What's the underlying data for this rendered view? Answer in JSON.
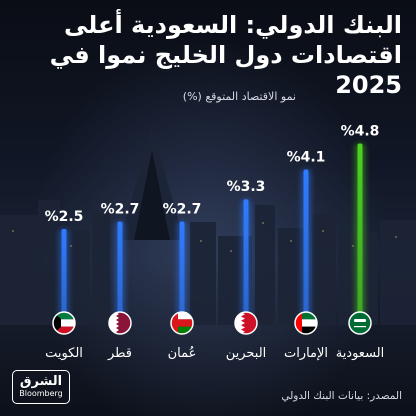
{
  "header": {
    "title": "البنك الدولي: السعودية أعلى اقتصادات دول الخليج نموا في 2025"
  },
  "chart_data": {
    "type": "bar",
    "title": "البنك الدولي: السعودية أعلى اقتصادات دول الخليج نموا في 2025",
    "ylabel": "نمو الاقتصاد المتوقع (%)",
    "categories": [
      "الكويت",
      "قطر",
      "عُمان",
      "البحرين",
      "الإمارات",
      "السعودية"
    ],
    "values": [
      2.5,
      2.7,
      2.7,
      3.3,
      4.1,
      4.8
    ],
    "value_labels": [
      "%2.5",
      "%2.7",
      "%2.7",
      "%3.3",
      "%4.1",
      "%4.8"
    ],
    "ylim": [
      0,
      5
    ],
    "grid": false,
    "colors": {
      "bar": "#2f7bff",
      "highlight": "#4cd31f"
    },
    "flag_icons": [
      "kuwait-flag-icon",
      "qatar-flag-icon",
      "oman-flag-icon",
      "bahrain-flag-icon",
      "uae-flag-icon",
      "saudi-flag-icon"
    ]
  },
  "footer": {
    "source": "المصدر: بيانات البنك الدولي",
    "logo_arabic": "الشرق",
    "logo_english": "Bloomberg"
  }
}
